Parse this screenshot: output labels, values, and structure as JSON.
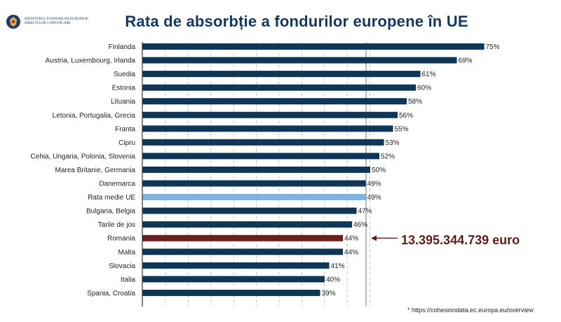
{
  "header": {
    "logo_line1": "MINISTERUL FONDURILOR EUROPENE",
    "logo_line2": "DIRECȚIA DE COMUNICARE",
    "title": "Rata de absorbție a fondurilor europene în UE"
  },
  "colors": {
    "bar": "#0f3557",
    "highlight_eu": "#7fb3e0",
    "highlight_ro": "#6b1d1d",
    "title": "#16385f"
  },
  "chart_data": {
    "type": "bar",
    "orientation": "horizontal",
    "title": "Rata de absorbție a fondurilor europene în UE",
    "categories": [
      "Finlanda",
      "Austria, Luxembourg, Irlanda",
      "Suedia",
      "Estonia",
      "Lituania",
      "Letonia, Portugalia, Grecia",
      "Franta",
      "Cipru",
      "Cehia, Ungaria, Polonia, Slovenia",
      "Marea Britanie, Germania",
      "Danemarca",
      "Rata medie UE",
      "Bulgaria, Belgia",
      "Tarile de jos",
      "Romania",
      "Malta",
      "Slovacia",
      "Italia",
      "Spania, Croatia"
    ],
    "values": [
      75,
      69,
      61,
      60,
      58,
      56,
      55,
      53,
      52,
      50,
      49,
      49,
      47,
      46,
      44,
      44,
      41,
      40,
      39
    ],
    "value_labels": [
      "75%",
      "69%",
      "61%",
      "60%",
      "58%",
      "56%",
      "55%",
      "53%",
      "52%",
      "50%",
      "49%",
      "49%",
      "47%",
      "46%",
      "44%",
      "44%",
      "41%",
      "40%",
      "39%"
    ],
    "highlights": {
      "Rata medie UE": "#7fb3e0",
      "Romania": "#6b1d1d"
    },
    "xlim": [
      0,
      80
    ],
    "grid": "vertical dashed",
    "legend": "none",
    "annotation": {
      "target": "Romania",
      "text": "13.395.344.739 euro"
    }
  },
  "footer": {
    "source": "* https://cohesiondata.ec.europa.eu/overview"
  }
}
